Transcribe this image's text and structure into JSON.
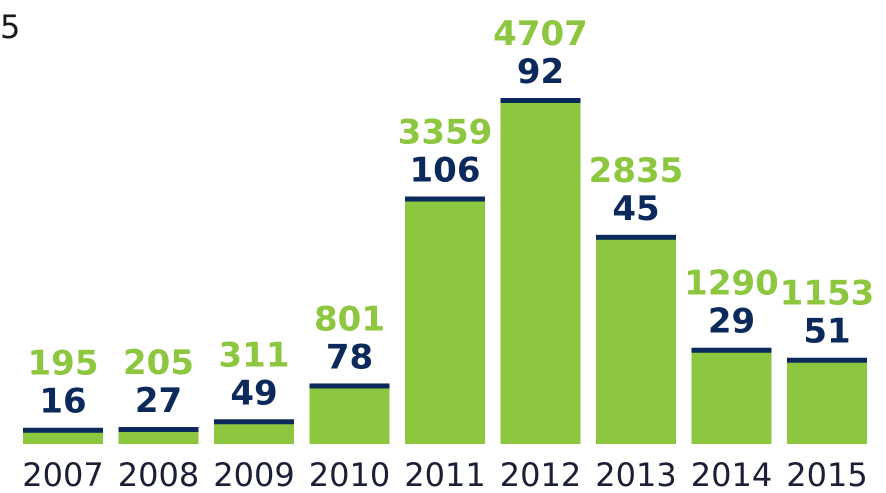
{
  "corner_fragment": "5",
  "colors": {
    "bar": "#8dc63f",
    "cap": "#0b2a5b",
    "green_label": "#8dc63f",
    "navy_label": "#0b2a5b",
    "year_label": "#1a1f36"
  },
  "chart_data": {
    "type": "bar",
    "title": "",
    "xlabel": "",
    "ylabel": "",
    "categories": [
      "2007",
      "2008",
      "2009",
      "2010",
      "2011",
      "2012",
      "2013",
      "2014",
      "2015"
    ],
    "series": [
      {
        "values": [
          195,
          205,
          311,
          801,
          3359,
          4707,
          2835,
          1290,
          1153
        ]
      },
      {
        "values": [
          16,
          27,
          49,
          78,
          106,
          92,
          45,
          29,
          51
        ]
      }
    ],
    "ylim": [
      0,
      4707
    ],
    "grid": false,
    "legend": "none"
  }
}
